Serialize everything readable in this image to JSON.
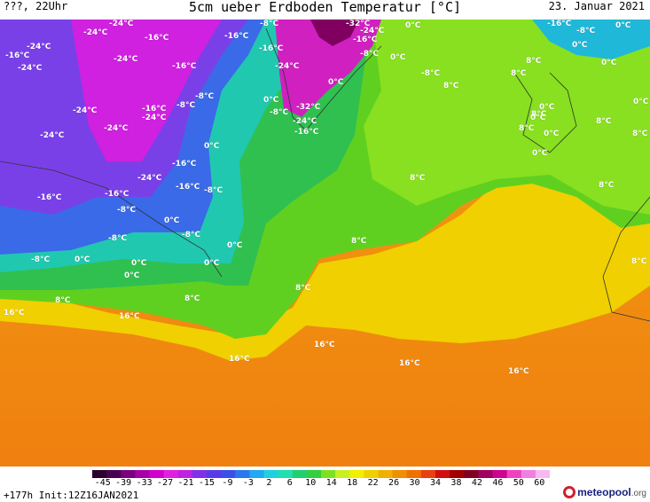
{
  "header": {
    "left": "???, 22Uhr",
    "title": "5cm ueber Erdboden Temperatur [°C]",
    "date": "23. Januar 2021"
  },
  "footer": {
    "init": "+177h Init:12Z16JAN2021",
    "logo_brand": "meteopool",
    "logo_domain": ".org"
  },
  "scale": {
    "ticks": [
      "-45",
      "-39",
      "-33",
      "-27",
      "-21",
      "-15",
      "-9",
      "-3",
      "2",
      "6",
      "10",
      "14",
      "18",
      "22",
      "26",
      "30",
      "34",
      "38",
      "42",
      "46",
      "50",
      "60"
    ],
    "colors": [
      "#2a0030",
      "#4a0050",
      "#7a0080",
      "#a800a8",
      "#d000d0",
      "#e020e0",
      "#c020e0",
      "#8030e8",
      "#5a3ae8",
      "#3a50e8",
      "#2a78f0",
      "#20a8f0",
      "#20d0e0",
      "#20e0b0",
      "#20d070",
      "#30d040",
      "#80e020",
      "#c8f020",
      "#f0f000",
      "#f0d000",
      "#f0b000",
      "#f09000",
      "#f07000",
      "#e84010",
      "#d01010",
      "#a00000",
      "#800020",
      "#a00060",
      "#d00090",
      "#f040c0",
      "#f080e0",
      "#f8b8f0"
    ]
  },
  "labels": [
    {
      "text": "-16°C",
      "x": 6,
      "y": 36
    },
    {
      "text": "-24°C",
      "x": 30,
      "y": 26
    },
    {
      "text": "-24°C",
      "x": 94,
      "y": 10
    },
    {
      "text": "-24°C",
      "x": 123,
      "y": 0
    },
    {
      "text": "-16°C",
      "x": 163,
      "y": 16
    },
    {
      "text": "-16°C",
      "x": 253,
      "y": 14
    },
    {
      "text": "-8°C",
      "x": 293,
      "y": -4
    },
    {
      "text": "-16°C",
      "x": 292,
      "y": 28
    },
    {
      "text": "-32°C",
      "x": 390,
      "y": -4
    },
    {
      "text": "-24°C",
      "x": 406,
      "y": 8
    },
    {
      "text": "-16°C",
      "x": 398,
      "y": 18
    },
    {
      "text": "-8°C",
      "x": 406,
      "y": 34
    },
    {
      "text": "-24°C",
      "x": 310,
      "y": 48
    },
    {
      "text": "0°C",
      "x": 457,
      "y": 2
    },
    {
      "text": "-16°C",
      "x": 617,
      "y": -4
    },
    {
      "text": "0°C",
      "x": 694,
      "y": 2
    },
    {
      "text": "-8°C",
      "x": 650,
      "y": 8
    },
    {
      "text": "0°C",
      "x": 645,
      "y": 24
    },
    {
      "text": "-24°C",
      "x": 20,
      "y": 50
    },
    {
      "text": "-24°C",
      "x": 128,
      "y": 40
    },
    {
      "text": "-16°C",
      "x": 194,
      "y": 48
    },
    {
      "text": "0°C",
      "x": 440,
      "y": 38
    },
    {
      "text": "-8°C",
      "x": 475,
      "y": 56
    },
    {
      "text": "8°C",
      "x": 593,
      "y": 42
    },
    {
      "text": "0°C",
      "x": 678,
      "y": 44
    },
    {
      "text": "8°C",
      "x": 576,
      "y": 56
    },
    {
      "text": "8°C",
      "x": 500,
      "y": 70
    },
    {
      "text": "0°C",
      "x": 370,
      "y": 66
    },
    {
      "text": "0°C",
      "x": 297,
      "y": 86
    },
    {
      "text": "-8°C",
      "x": 220,
      "y": 82
    },
    {
      "text": "-16°C",
      "x": 160,
      "y": 96
    },
    {
      "text": "-8°C",
      "x": 199,
      "y": 92
    },
    {
      "text": "-24°C",
      "x": 82,
      "y": 98
    },
    {
      "text": "-24°C",
      "x": 160,
      "y": 106
    },
    {
      "text": "-8°C",
      "x": 304,
      "y": 100
    },
    {
      "text": "-32°C",
      "x": 334,
      "y": 94
    },
    {
      "text": "-24°C",
      "x": 330,
      "y": 110
    },
    {
      "text": "-16°C",
      "x": 332,
      "y": 122
    },
    {
      "text": "0°C",
      "x": 608,
      "y": 94
    },
    {
      "text": "0°C",
      "x": 714,
      "y": 88
    },
    {
      "text": "8°C",
      "x": 599,
      "y": 102
    },
    {
      "text": "0°C",
      "x": 598,
      "y": 106
    },
    {
      "text": "8°C",
      "x": 672,
      "y": 110
    },
    {
      "text": "8°C",
      "x": 585,
      "y": 118
    },
    {
      "text": "0°C",
      "x": 613,
      "y": 124
    },
    {
      "text": "8°C",
      "x": 713,
      "y": 124
    },
    {
      "text": "-24°C",
      "x": 45,
      "y": 126
    },
    {
      "text": "-24°C",
      "x": 117,
      "y": 118
    },
    {
      "text": "0°C",
      "x": 230,
      "y": 138
    },
    {
      "text": "0°C",
      "x": 600,
      "y": 146
    },
    {
      "text": "-16°C",
      "x": 194,
      "y": 158
    },
    {
      "text": "-24°C",
      "x": 155,
      "y": 174
    },
    {
      "text": "-16°C",
      "x": 198,
      "y": 184
    },
    {
      "text": "-8°C",
      "x": 230,
      "y": 188
    },
    {
      "text": "8°C",
      "x": 462,
      "y": 174
    },
    {
      "text": "8°C",
      "x": 675,
      "y": 182
    },
    {
      "text": "-16°C",
      "x": 42,
      "y": 196
    },
    {
      "text": "-16°C",
      "x": 118,
      "y": 192
    },
    {
      "text": "-8°C",
      "x": 132,
      "y": 210
    },
    {
      "text": "0°C",
      "x": 185,
      "y": 222
    },
    {
      "text": "-8°C",
      "x": 122,
      "y": 242
    },
    {
      "text": "-8°C",
      "x": 205,
      "y": 238
    },
    {
      "text": "0°C",
      "x": 256,
      "y": 250
    },
    {
      "text": "8°C",
      "x": 396,
      "y": 245
    },
    {
      "text": "-8°C",
      "x": 35,
      "y": 266
    },
    {
      "text": "0°C",
      "x": 84,
      "y": 266
    },
    {
      "text": "0°C",
      "x": 148,
      "y": 270
    },
    {
      "text": "0°C",
      "x": 230,
      "y": 270
    },
    {
      "text": "0°C",
      "x": 140,
      "y": 284
    },
    {
      "text": "8°C",
      "x": 712,
      "y": 268
    },
    {
      "text": "8°C",
      "x": 333,
      "y": 298
    },
    {
      "text": "8°C",
      "x": 62,
      "y": 312
    },
    {
      "text": "8°C",
      "x": 208,
      "y": 310
    },
    {
      "text": "16°C",
      "x": 4,
      "y": 326
    },
    {
      "text": "16°C",
      "x": 134,
      "y": 330
    },
    {
      "text": "16°C",
      "x": 354,
      "y": 362
    },
    {
      "text": "16°C",
      "x": 258,
      "y": 378
    },
    {
      "text": "16°C",
      "x": 450,
      "y": 383
    },
    {
      "text": "16°C",
      "x": 573,
      "y": 392
    }
  ]
}
